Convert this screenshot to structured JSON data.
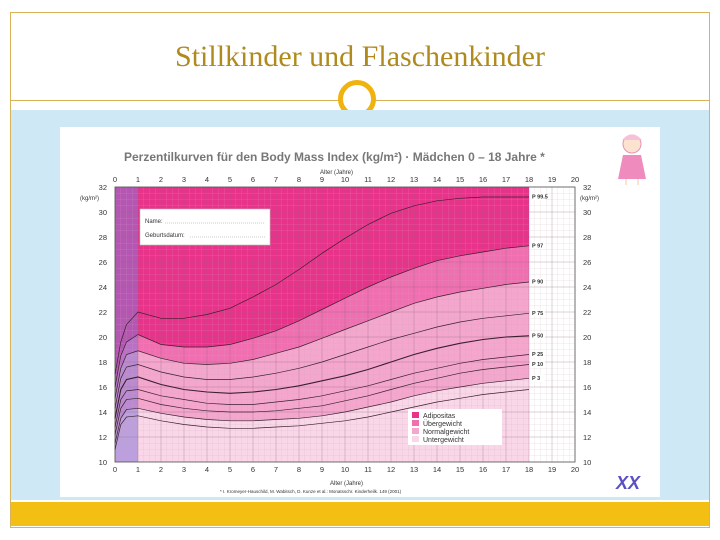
{
  "slide": {
    "title": "Stillkinder und Flaschenkinder"
  },
  "colors": {
    "accent": "#f2bf12",
    "title": "#b08a1c",
    "band_adipositas": "#e8338b",
    "band_uebergewicht": "#ef6fb0",
    "band_normal": "#f4a6cd",
    "band_unter": "#f9d6e8",
    "infant_band": "#8a72d6"
  },
  "icons": {
    "logo": "xx-logo-icon",
    "girl": "girl-figure-icon"
  },
  "chart_data": {
    "type": "line",
    "title": "Perzentilkurven für den Body Mass Index (kg/m²) · Mädchen 0 – 18 Jahre *",
    "xlabel": "Alter (Jahre)",
    "ylabel": "(kg/m²)",
    "xlim": [
      0,
      20
    ],
    "ylim": [
      10,
      32
    ],
    "x_ticks": [
      0,
      1,
      2,
      3,
      4,
      5,
      6,
      7,
      8,
      9,
      10,
      11,
      12,
      13,
      14,
      15,
      16,
      17,
      18,
      19,
      20
    ],
    "y_ticks": [
      10,
      12,
      14,
      16,
      18,
      20,
      22,
      24,
      26,
      28,
      30,
      32
    ],
    "x": [
      0,
      0.25,
      0.5,
      1,
      2,
      3,
      4,
      5,
      6,
      7,
      8,
      9,
      10,
      11,
      12,
      13,
      14,
      15,
      16,
      17,
      18
    ],
    "series": [
      {
        "name": "P 99.5",
        "values": [
          17.0,
          19.6,
          21.0,
          22.0,
          21.5,
          21.5,
          21.8,
          22.3,
          23.2,
          24.2,
          25.4,
          26.7,
          27.9,
          29.0,
          29.9,
          30.5,
          30.9,
          31.1,
          31.2,
          31.2,
          31.2
        ]
      },
      {
        "name": "P 97",
        "values": [
          16.0,
          18.5,
          19.6,
          20.2,
          19.4,
          19.2,
          19.2,
          19.4,
          19.9,
          20.5,
          21.3,
          22.2,
          23.1,
          24.0,
          24.8,
          25.5,
          26.1,
          26.5,
          26.8,
          27.1,
          27.3
        ]
      },
      {
        "name": "P 90",
        "values": [
          15.1,
          17.5,
          18.6,
          18.9,
          18.3,
          17.9,
          17.8,
          17.9,
          18.2,
          18.7,
          19.2,
          19.9,
          20.6,
          21.3,
          22.0,
          22.7,
          23.2,
          23.6,
          23.9,
          24.2,
          24.4
        ]
      },
      {
        "name": "P 75",
        "values": [
          14.3,
          16.7,
          17.6,
          17.8,
          17.2,
          16.8,
          16.6,
          16.6,
          16.8,
          17.1,
          17.5,
          18.0,
          18.6,
          19.2,
          19.8,
          20.3,
          20.8,
          21.2,
          21.5,
          21.7,
          21.9
        ]
      },
      {
        "name": "P 50",
        "values": [
          13.5,
          15.8,
          16.6,
          16.8,
          16.2,
          15.8,
          15.6,
          15.5,
          15.6,
          15.8,
          16.1,
          16.5,
          16.9,
          17.4,
          18.0,
          18.6,
          19.1,
          19.5,
          19.8,
          20.0,
          20.1
        ]
      },
      {
        "name": "P 25",
        "values": [
          12.8,
          15.0,
          15.7,
          15.8,
          15.3,
          15.0,
          14.7,
          14.6,
          14.6,
          14.8,
          15.0,
          15.3,
          15.7,
          16.1,
          16.6,
          17.1,
          17.5,
          17.9,
          18.2,
          18.4,
          18.6
        ]
      },
      {
        "name": "P 10",
        "values": [
          12.2,
          14.3,
          15.0,
          15.1,
          14.6,
          14.3,
          14.1,
          14.0,
          14.0,
          14.1,
          14.3,
          14.5,
          14.9,
          15.3,
          15.8,
          16.3,
          16.7,
          17.1,
          17.4,
          17.6,
          17.8
        ]
      },
      {
        "name": "P 3",
        "values": [
          11.5,
          13.5,
          14.2,
          14.3,
          13.9,
          13.6,
          13.4,
          13.3,
          13.3,
          13.4,
          13.5,
          13.7,
          14.0,
          14.4,
          14.8,
          15.3,
          15.7,
          16.0,
          16.3,
          16.5,
          16.7
        ]
      },
      {
        "name": "",
        "values": [
          11.0,
          13.0,
          13.6,
          13.7,
          13.3,
          13.0,
          12.8,
          12.7,
          12.7,
          12.8,
          12.9,
          13.1,
          13.3,
          13.6,
          14.0,
          14.4,
          14.8,
          15.1,
          15.4,
          15.6,
          15.8
        ]
      }
    ],
    "percentile_labels": [
      "P 99.5",
      "P 97",
      "P 90",
      "P 75",
      "P 50",
      "P 25",
      "P 10",
      "P 3"
    ],
    "form": {
      "name_label": "Name:",
      "dob_label": "Geburtsdatum:"
    },
    "legend_position": "bottom-right",
    "legend": [
      "Adipositas",
      "Übergewicht",
      "Normalgewicht",
      "Untergewicht"
    ],
    "footnote": "* I. Kromeyer-Hauschild, M. Wabitsch, D. Kunze et al.: Monatsschr. Kinderheilk. 149 (2001)",
    "grid": true
  }
}
